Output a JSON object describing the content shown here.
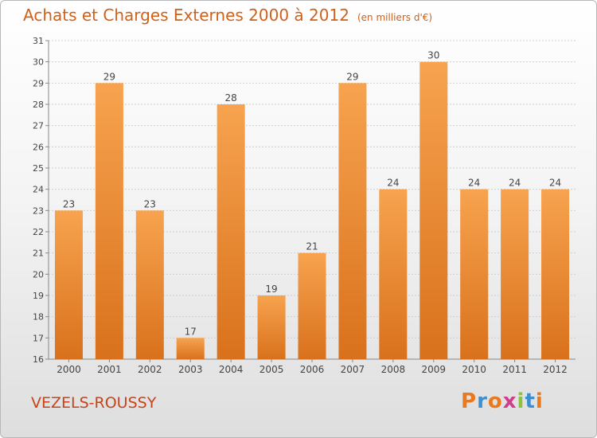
{
  "header": {
    "title": "Achats et Charges Externes 2000 à 2012",
    "subtitle": "(en milliers d'€)"
  },
  "footer": {
    "commune": "VEZELS-ROUSSY",
    "logo_letters": [
      "P",
      "r",
      "o",
      "x",
      "i",
      "t",
      "i"
    ],
    "logo_colors": [
      "#e8791e",
      "#3c8fd1",
      "#e8791e",
      "#d23c8c",
      "#8cc13f",
      "#3c8fd1",
      "#e8791e"
    ]
  },
  "colors": {
    "bar_light": "#f7a34f",
    "bar_dark": "#d9711c",
    "text": "#444444",
    "title": "#d0601a"
  },
  "chart_data": {
    "type": "bar",
    "title": "Achats et Charges Externes 2000 à 2012",
    "subtitle": "(en milliers d'€)",
    "categories": [
      "2000",
      "2001",
      "2002",
      "2003",
      "2004",
      "2005",
      "2006",
      "2007",
      "2008",
      "2009",
      "2010",
      "2011",
      "2012"
    ],
    "values": [
      23,
      29,
      23,
      17,
      28,
      19,
      21,
      29,
      24,
      30,
      24,
      24,
      24
    ],
    "ylim": [
      16,
      31
    ],
    "yticks": [
      16,
      17,
      18,
      19,
      20,
      21,
      22,
      23,
      24,
      25,
      26,
      27,
      28,
      29,
      30,
      31
    ],
    "grid": true,
    "legend": "none"
  }
}
